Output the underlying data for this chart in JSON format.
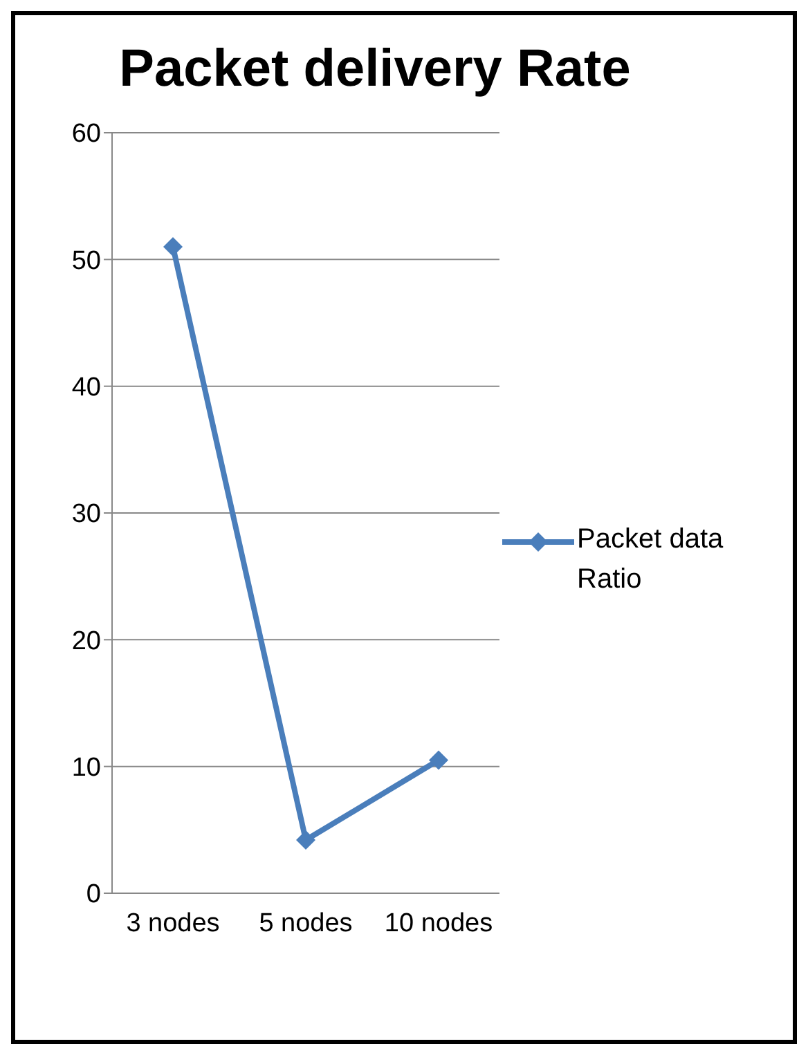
{
  "chart_data": {
    "type": "line",
    "title": "Packet delivery Rate",
    "categories": [
      "3 nodes",
      "5 nodes",
      "10 nodes"
    ],
    "series": [
      {
        "name": "Packet data Ratio",
        "color": "#4a7ebb",
        "values": [
          51,
          4.2,
          10.5
        ]
      }
    ],
    "ylim": [
      0,
      60
    ],
    "yticks": [
      0,
      10,
      20,
      30,
      40,
      50,
      60
    ],
    "grid": "y",
    "legend": "right",
    "marker": "diamond",
    "line_style": "solid"
  }
}
